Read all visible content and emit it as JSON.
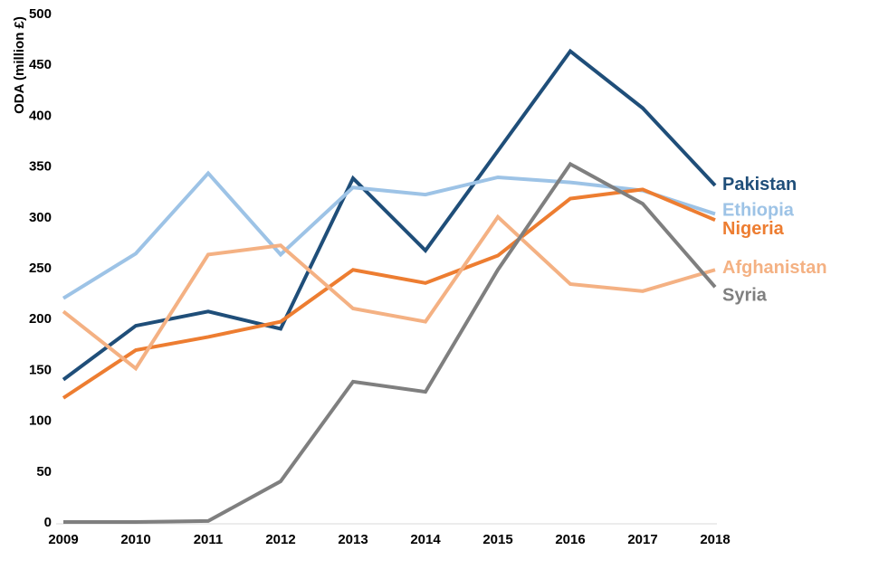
{
  "chart_data": {
    "type": "line",
    "title": "",
    "ylabel": "ODA (million £)",
    "xlabel": "",
    "ylim": [
      0,
      500
    ],
    "ytick_step": 50,
    "grid": false,
    "legend_position": "line-end-labels-right",
    "axis_color": "#D9D9D9",
    "tick_color": "#000000",
    "line_width": 4,
    "x": [
      2009,
      2010,
      2011,
      2012,
      2013,
      2014,
      2015,
      2016,
      2017,
      2018
    ],
    "xticks": [
      "2009",
      "2010",
      "2011",
      "2012",
      "2013",
      "2014",
      "2015",
      "2016",
      "2017",
      "2018"
    ],
    "yticks": [
      "0",
      "50",
      "100",
      "150",
      "200",
      "250",
      "300",
      "350",
      "400",
      "450",
      "500"
    ],
    "series": [
      {
        "name": "Pakistan",
        "color": "#1F4E79",
        "label_dy": -2,
        "values": [
          140,
          193,
          207,
          190,
          338,
          267,
          365,
          463,
          407,
          331
        ]
      },
      {
        "name": "Ethiopia",
        "color": "#9DC3E6",
        "label_dy": -5,
        "values": [
          220,
          264,
          343,
          263,
          329,
          322,
          339,
          334,
          326,
          303
        ]
      },
      {
        "name": "Nigeria",
        "color": "#ED7D31",
        "label_dy": 9,
        "values": [
          122,
          169,
          182,
          197,
          248,
          235,
          262,
          318,
          327,
          297
        ]
      },
      {
        "name": "Afghanistan",
        "color": "#F4B183",
        "label_dy": -3,
        "values": [
          207,
          151,
          263,
          272,
          210,
          197,
          300,
          234,
          227,
          248
        ]
      },
      {
        "name": "Syria",
        "color": "#7F7F7F",
        "label_dy": 8,
        "values": [
          0,
          0,
          1,
          40,
          138,
          128,
          248,
          352,
          313,
          231
        ]
      }
    ]
  }
}
